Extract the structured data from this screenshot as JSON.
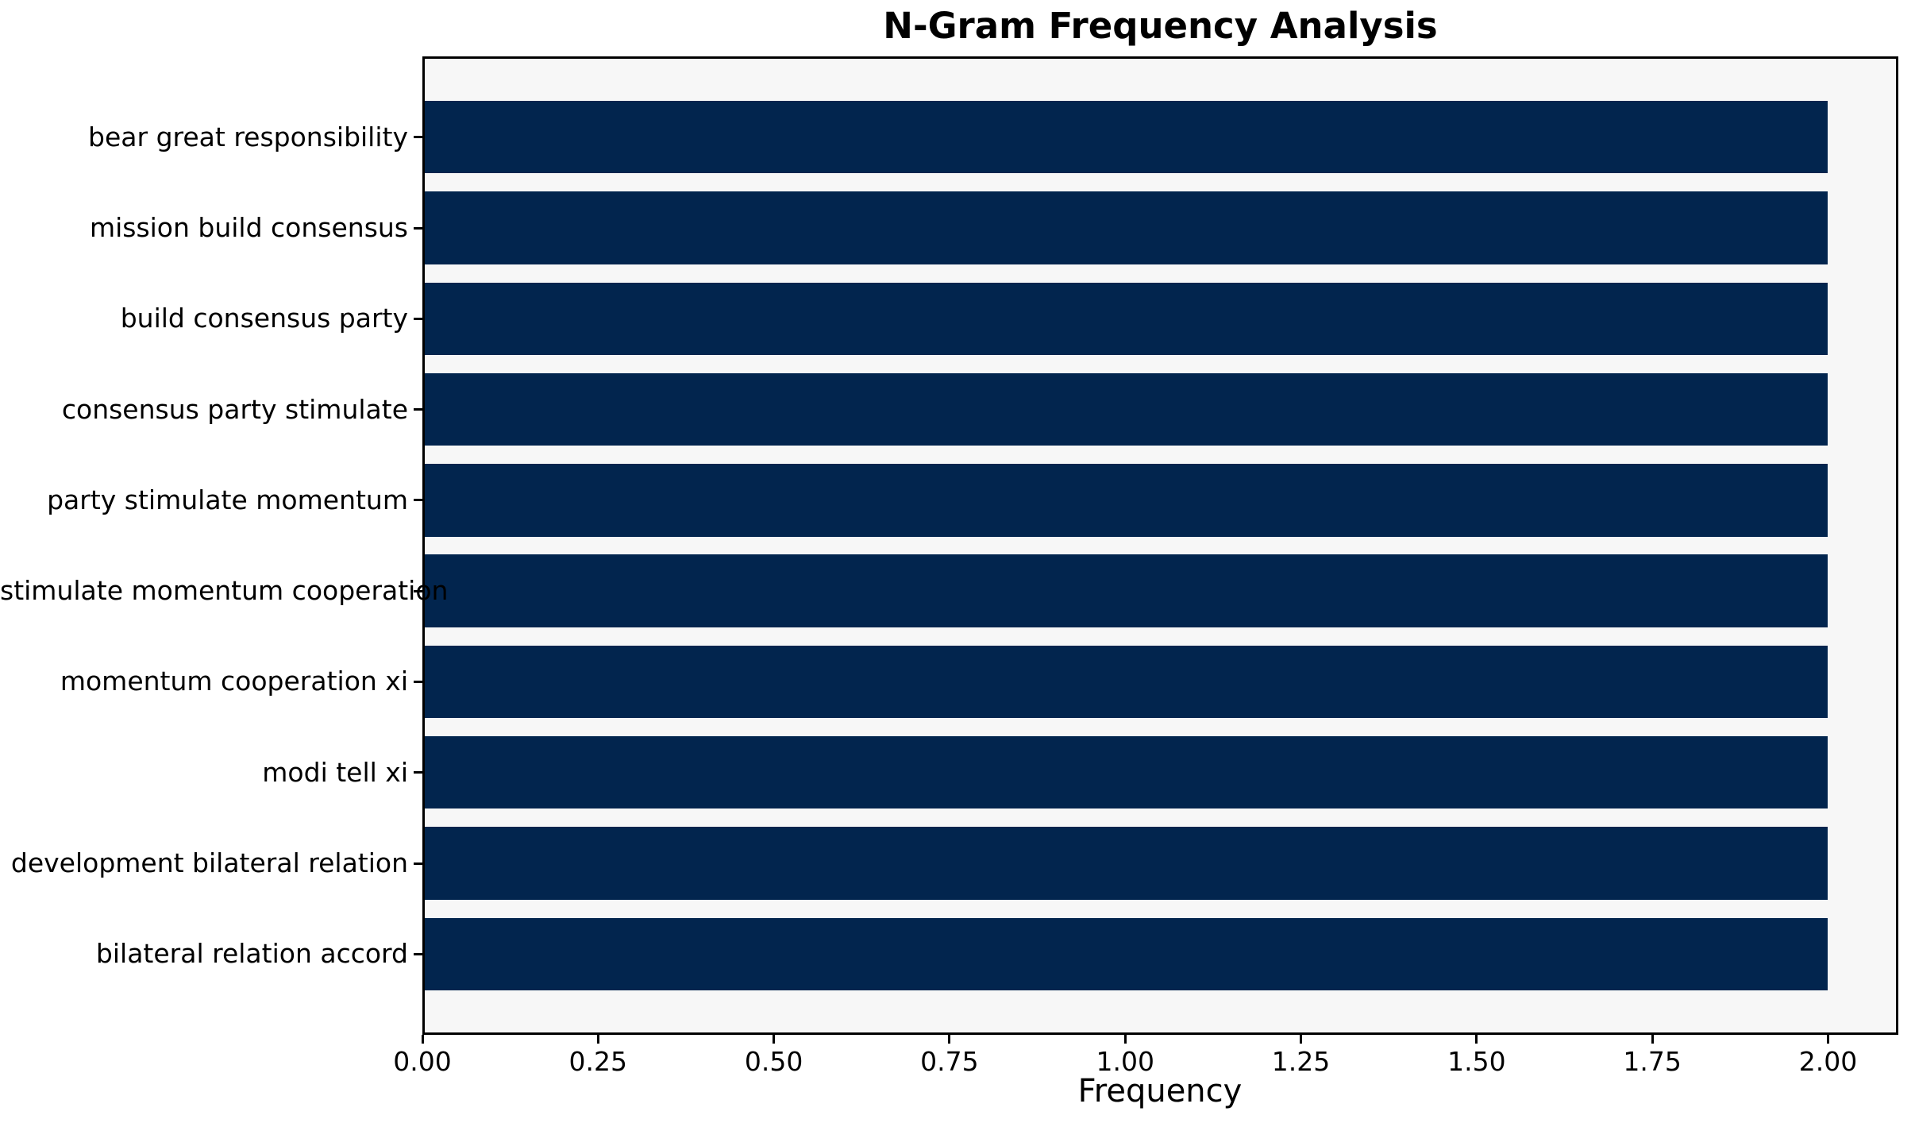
{
  "chart_data": {
    "type": "bar",
    "orientation": "horizontal",
    "title": "N-Gram Frequency Analysis",
    "xlabel": "Frequency",
    "ylabel": "",
    "categories": [
      "bear great responsibility",
      "mission build consensus",
      "build consensus party",
      "consensus party stimulate",
      "party stimulate momentum",
      "stimulate momentum cooperation",
      "momentum cooperation xi",
      "modi tell xi",
      "development bilateral relation",
      "bilateral relation accord"
    ],
    "values": [
      2.0,
      2.0,
      2.0,
      2.0,
      2.0,
      2.0,
      2.0,
      2.0,
      2.0,
      2.0
    ],
    "xlim": [
      0,
      2.1
    ],
    "xticks": [
      0.0,
      0.25,
      0.5,
      0.75,
      1.0,
      1.25,
      1.5,
      1.75,
      2.0
    ],
    "xtick_labels": [
      "0.00",
      "0.25",
      "0.50",
      "0.75",
      "1.00",
      "1.25",
      "1.50",
      "1.75",
      "2.00"
    ],
    "grid": false,
    "legend": null,
    "colors": {
      "bar": "#02254e",
      "axes_background": "#f7f7f7",
      "figure_background": "#ffffff",
      "spine": "#000000",
      "text": "#000000"
    }
  }
}
